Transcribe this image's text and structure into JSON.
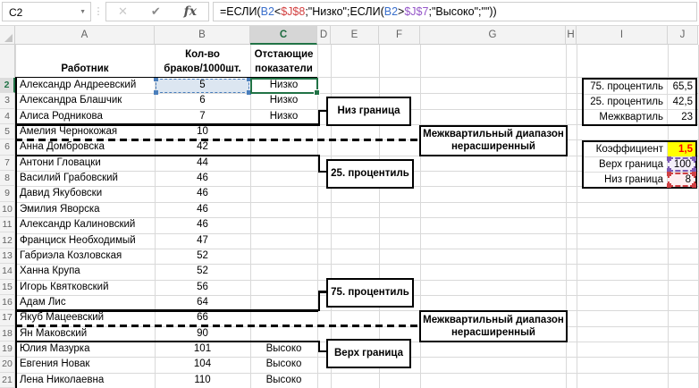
{
  "selection": {
    "active_cell": "C2",
    "active_column": "C",
    "active_row": 2
  },
  "formula_bar": {
    "name_box": "C2",
    "name_box_dropdown_icon": "▼",
    "dots_separator": "⋮",
    "cancel_icon": "✕",
    "enter_icon": "✔",
    "function_icon": "fx",
    "formula_tokens": [
      {
        "text": "=ЕСЛИ(",
        "color": "#000000"
      },
      {
        "text": "B2",
        "color": "#3a6fcb"
      },
      {
        "text": "<",
        "color": "#000000"
      },
      {
        "text": "$J$8",
        "color": "#d23f3f"
      },
      {
        "text": ";\"Низко\";ЕСЛИ(",
        "color": "#000000"
      },
      {
        "text": "B2",
        "color": "#3a6fcb"
      },
      {
        "text": ">",
        "color": "#000000"
      },
      {
        "text": "$J$7",
        "color": "#9455c8"
      },
      {
        "text": ";\"Высоко\";\"\"))",
        "color": "#000000"
      }
    ]
  },
  "columns": [
    "A",
    "B",
    "C",
    "D",
    "E",
    "F",
    "G",
    "H",
    "I",
    "J"
  ],
  "sheet": {
    "header_a": "Работник",
    "header_b_line1": "Кол-во",
    "header_b_line2": "браков/1000шт.",
    "header_c_line1": "Отстающие",
    "header_c_line2": "показатели",
    "rows": [
      {
        "n": 2,
        "name": "Александр Андреевский",
        "value": "5",
        "status": "Низко"
      },
      {
        "n": 3,
        "name": "Александра Блашчик",
        "value": "6",
        "status": "Низко"
      },
      {
        "n": 4,
        "name": "Алиса Родникова",
        "value": "7",
        "status": "Низко"
      },
      {
        "n": 5,
        "name": "Амелия Чернокожая",
        "value": "10",
        "status": ""
      },
      {
        "n": 6,
        "name": "Анна Домбровска",
        "value": "42",
        "status": ""
      },
      {
        "n": 7,
        "name": "Антони Гловацки",
        "value": "44",
        "status": ""
      },
      {
        "n": 8,
        "name": "Василий Грабовский",
        "value": "46",
        "status": ""
      },
      {
        "n": 9,
        "name": "Давид Якубовски",
        "value": "46",
        "status": ""
      },
      {
        "n": 10,
        "name": "Эмилия Яворска",
        "value": "46",
        "status": ""
      },
      {
        "n": 11,
        "name": "Александр Калиновский",
        "value": "46",
        "status": ""
      },
      {
        "n": 12,
        "name": "Франциск Необходимый",
        "value": "47",
        "status": ""
      },
      {
        "n": 13,
        "name": "Габриэла Козловская",
        "value": "52",
        "status": ""
      },
      {
        "n": 14,
        "name": "Ханна Крупа",
        "value": "52",
        "status": ""
      },
      {
        "n": 15,
        "name": "Игорь Квятковский",
        "value": "56",
        "status": ""
      },
      {
        "n": 16,
        "name": "Адам Лис",
        "value": "64",
        "status": ""
      },
      {
        "n": 17,
        "name": "Якуб Мацеевский",
        "value": "66",
        "status": ""
      },
      {
        "n": 18,
        "name": "Ян Маковский",
        "value": "90",
        "status": ""
      },
      {
        "n": 19,
        "name": "Юлия Мазурка",
        "value": "101",
        "status": "Высоко"
      },
      {
        "n": 20,
        "name": "Евгения Новак",
        "value": "104",
        "status": "Высоко"
      },
      {
        "n": 21,
        "name": "Лена Николаевна",
        "value": "110",
        "status": "Высоко"
      }
    ]
  },
  "annotations": {
    "low_bound_label": "Низ граница",
    "p25_label": "25. процентиль",
    "p75_label": "75. процентиль",
    "high_bound_label": "Верх граница",
    "iqr_line1": "Межквартильный диапазон",
    "iqr_line2": "нерасширенный"
  },
  "side_table_1": {
    "rows": [
      {
        "label": "75. процентиль",
        "value": "65,5"
      },
      {
        "label": "25. процентиль",
        "value": "42,5"
      },
      {
        "label": "Межквартиль",
        "value": "23"
      }
    ]
  },
  "side_table_2": {
    "rows": [
      {
        "label": "Коэффициент",
        "value": "1,5"
      },
      {
        "label": "Верх граница",
        "value": "100"
      },
      {
        "label": "Низ граница",
        "value": "8"
      }
    ]
  },
  "colors": {
    "excel_green": "#217346",
    "ref_blue": "#4a7ebb",
    "ref_purple": "#7d5bb5",
    "ref_red": "#cf4044",
    "coefficient_fill": "#ffff00",
    "coefficient_text": "#fe0000",
    "b2_fill": "#dce6f1"
  }
}
